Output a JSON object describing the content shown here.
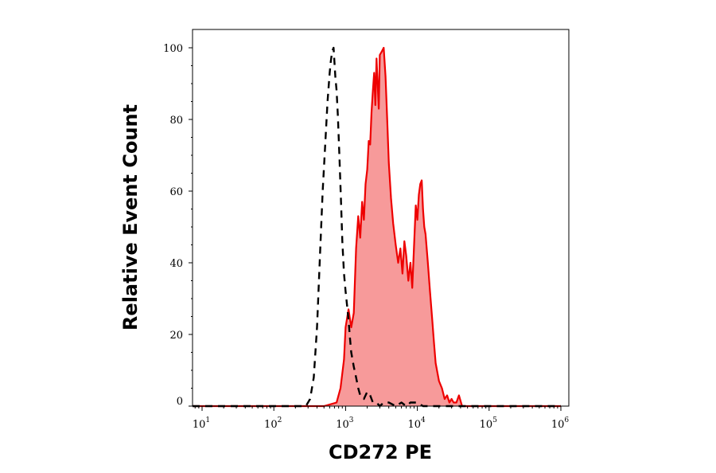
{
  "chart_data": {
    "type": "area",
    "title": "",
    "xlabel": "CD272 PE",
    "ylabel": "Relative Event Count",
    "xscale": "log",
    "xlim": [
      0.7,
      1000000
    ],
    "ylim": [
      0,
      105
    ],
    "x_ticks": [
      {
        "base": "10",
        "exp": "1"
      },
      {
        "base": "10",
        "exp": "2"
      },
      {
        "base": "10",
        "exp": "3"
      },
      {
        "base": "10",
        "exp": "4"
      },
      {
        "base": "10",
        "exp": "5"
      },
      {
        "base": "10",
        "exp": "6"
      }
    ],
    "y_ticks": [
      "0",
      "20",
      "40",
      "60",
      "80",
      "100"
    ],
    "grid": false,
    "legend": "none",
    "series": [
      {
        "style": "filled-red",
        "line_color": "#ee0000",
        "fill_color": "#f79a9a",
        "x": [
          0.7,
          500,
          750,
          850,
          950,
          1000,
          1100,
          1200,
          1300,
          1400,
          1500,
          1600,
          1700,
          1800,
          1900,
          2000,
          2100,
          2200,
          2300,
          2400,
          2500,
          2600,
          2700,
          2800,
          2900,
          3000,
          3200,
          3400,
          3600,
          3800,
          4000,
          4300,
          4600,
          5000,
          5400,
          5800,
          6200,
          6600,
          7000,
          7500,
          8000,
          8500,
          9000,
          9500,
          10000,
          10500,
          11000,
          11500,
          12000,
          12500,
          13000,
          14000,
          15000,
          16000,
          17000,
          18000,
          20000,
          22000,
          24000,
          26000,
          28000,
          30000,
          32000,
          35000,
          38000,
          42000,
          50000,
          1000000
        ],
        "y": [
          0,
          0,
          1,
          5,
          13,
          22,
          27,
          22,
          26,
          44,
          53,
          47,
          57,
          52,
          62,
          66,
          74,
          73,
          82,
          88,
          93,
          84,
          97,
          90,
          83,
          98,
          99,
          100,
          92,
          80,
          68,
          58,
          51,
          45,
          40,
          44,
          37,
          46,
          42,
          35,
          40,
          33,
          45,
          56,
          52,
          59,
          62,
          63,
          55,
          50,
          48,
          40,
          32,
          25,
          18,
          12,
          7,
          5,
          2,
          3,
          1,
          2,
          1,
          1,
          3,
          0,
          0,
          0
        ]
      },
      {
        "style": "dashed-black",
        "line_color": "#000000",
        "x": [
          0.7,
          280,
          320,
          360,
          400,
          440,
          480,
          520,
          560,
          600,
          620,
          650,
          680,
          700,
          720,
          750,
          780,
          820,
          860,
          900,
          950,
          1000,
          1050,
          1100,
          1150,
          1200,
          1300,
          1400,
          1500,
          1600,
          1800,
          2000,
          2200,
          2400,
          2700,
          3000,
          3400,
          4000,
          5000,
          6000,
          7000,
          8000,
          10000,
          12000,
          15000,
          1000000
        ],
        "y": [
          0,
          0,
          2,
          8,
          22,
          42,
          60,
          73,
          85,
          93,
          96,
          99,
          100,
          96,
          92,
          88,
          81,
          70,
          58,
          46,
          37,
          32,
          28,
          24,
          19,
          15,
          11,
          8,
          5,
          3,
          2,
          4,
          3,
          1,
          1,
          0,
          1,
          1,
          0,
          1,
          0,
          1,
          1,
          0,
          0,
          0
        ]
      }
    ]
  }
}
